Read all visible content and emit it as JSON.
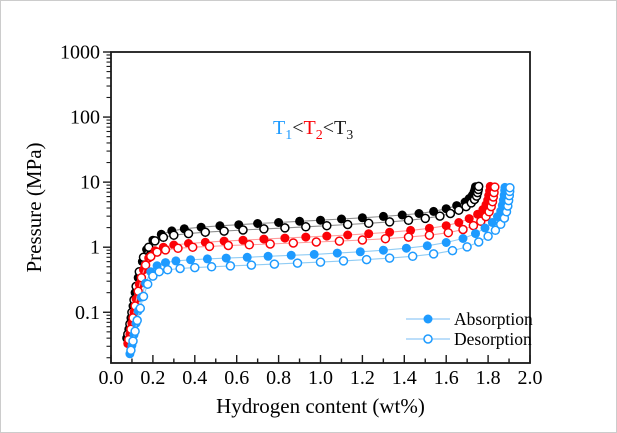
{
  "figure": {
    "background": "#ffffff",
    "frame_color": "#1a1a1a",
    "outer_border_color": "#cccccc"
  },
  "chart_data": {
    "type": "line",
    "title": "",
    "xlabel": "Hydrogen content (wt%)",
    "ylabel": "Pressure (MPa)",
    "x_axis": {
      "min": 0.0,
      "max": 2.0,
      "major_tick_step": 0.2,
      "minor_tick_step": 0.1,
      "tick_labels": [
        "0.0",
        "0.2",
        "0.4",
        "0.6",
        "0.8",
        "1.0",
        "1.2",
        "1.4",
        "1.6",
        "1.8",
        "2.0"
      ],
      "ticks_direction": "in"
    },
    "y_axis": {
      "scale": "log",
      "display_min": 0.0166,
      "display_max": 1000,
      "major_ticks": [
        0.1,
        1,
        10,
        100,
        1000
      ],
      "tick_labels": [
        "0.1",
        "1",
        "10",
        "100",
        "1000"
      ],
      "ticks_direction": "out"
    },
    "grid": false,
    "annotation": {
      "meaning": "T1 < T2 < T3",
      "parts": [
        {
          "text": "T",
          "subscript": "1",
          "color": "#1e9bff"
        },
        {
          "text": "<",
          "color": "#1a1a1a"
        },
        {
          "text": "T",
          "subscript": "2",
          "color": "#fb0207"
        },
        {
          "text": "<",
          "color": "#1a1a1a"
        },
        {
          "text": "T",
          "subscript": "3",
          "color": "#1a1a1a"
        }
      ]
    },
    "legend": {
      "position": "lower right",
      "entries": [
        {
          "label": "Absorption",
          "marker": "filled-circle",
          "marker_color": "#1e9bff",
          "line_color": "#a6d4f8"
        },
        {
          "label": "Desorption",
          "marker": "open-circle",
          "marker_color": "#1e9bff",
          "line_color": "#a6d4f8"
        }
      ]
    },
    "series": [
      {
        "name": "T3 absorption",
        "temperature": "T3",
        "branch": "absorption",
        "marker": "filled-circle",
        "marker_color": "#000000",
        "line_color": "#8f8f8f",
        "points": [
          [
            0.075,
            0.04
          ],
          [
            0.085,
            0.055
          ],
          [
            0.095,
            0.082
          ],
          [
            0.105,
            0.125
          ],
          [
            0.115,
            0.2
          ],
          [
            0.13,
            0.34
          ],
          [
            0.15,
            0.6
          ],
          [
            0.17,
            0.92
          ],
          [
            0.2,
            1.28
          ],
          [
            0.24,
            1.58
          ],
          [
            0.29,
            1.78
          ],
          [
            0.35,
            1.92
          ],
          [
            0.43,
            2.03
          ],
          [
            0.52,
            2.13
          ],
          [
            0.61,
            2.22
          ],
          [
            0.7,
            2.31
          ],
          [
            0.8,
            2.4
          ],
          [
            0.9,
            2.5
          ],
          [
            1.0,
            2.6
          ],
          [
            1.1,
            2.71
          ],
          [
            1.2,
            2.83
          ],
          [
            1.3,
            2.97
          ],
          [
            1.39,
            3.12
          ],
          [
            1.47,
            3.3
          ],
          [
            1.54,
            3.55
          ],
          [
            1.6,
            3.9
          ],
          [
            1.65,
            4.35
          ],
          [
            1.69,
            4.95
          ],
          [
            1.71,
            5.6
          ],
          [
            1.725,
            6.3
          ],
          [
            1.733,
            7.1
          ],
          [
            1.738,
            7.9
          ],
          [
            1.74,
            8.5
          ]
        ]
      },
      {
        "name": "T3 desorption",
        "temperature": "T3",
        "branch": "desorption",
        "marker": "open-circle",
        "marker_color": "#000000",
        "line_color": "#8f8f8f",
        "points": [
          [
            0.08,
            0.046
          ],
          [
            0.09,
            0.066
          ],
          [
            0.1,
            0.1
          ],
          [
            0.11,
            0.155
          ],
          [
            0.12,
            0.25
          ],
          [
            0.135,
            0.42
          ],
          [
            0.155,
            0.7
          ],
          [
            0.18,
            1.0
          ],
          [
            0.21,
            1.25
          ],
          [
            0.25,
            1.42
          ],
          [
            0.3,
            1.53
          ],
          [
            0.37,
            1.62
          ],
          [
            0.45,
            1.7
          ],
          [
            0.54,
            1.77
          ],
          [
            0.63,
            1.84
          ],
          [
            0.73,
            1.91
          ],
          [
            0.83,
            1.98
          ],
          [
            0.93,
            2.06
          ],
          [
            1.03,
            2.14
          ],
          [
            1.13,
            2.23
          ],
          [
            1.23,
            2.33
          ],
          [
            1.33,
            2.45
          ],
          [
            1.42,
            2.59
          ],
          [
            1.5,
            2.77
          ],
          [
            1.57,
            3.0
          ],
          [
            1.62,
            3.3
          ],
          [
            1.66,
            3.7
          ],
          [
            1.695,
            4.2
          ],
          [
            1.72,
            4.8
          ],
          [
            1.735,
            5.4
          ],
          [
            1.745,
            6.1
          ],
          [
            1.75,
            6.9
          ],
          [
            1.753,
            7.7
          ],
          [
            1.755,
            8.6
          ]
        ]
      },
      {
        "name": "T2 absorption",
        "temperature": "T2",
        "branch": "absorption",
        "marker": "filled-circle",
        "marker_color": "#fb0207",
        "line_color": "#ff9c9c",
        "points": [
          [
            0.08,
            0.033
          ],
          [
            0.09,
            0.046
          ],
          [
            0.1,
            0.068
          ],
          [
            0.11,
            0.1
          ],
          [
            0.12,
            0.16
          ],
          [
            0.135,
            0.27
          ],
          [
            0.155,
            0.45
          ],
          [
            0.18,
            0.68
          ],
          [
            0.21,
            0.88
          ],
          [
            0.25,
            1.0
          ],
          [
            0.3,
            1.08
          ],
          [
            0.37,
            1.14
          ],
          [
            0.45,
            1.19
          ],
          [
            0.54,
            1.24
          ],
          [
            0.63,
            1.28
          ],
          [
            0.73,
            1.33
          ],
          [
            0.83,
            1.38
          ],
          [
            0.93,
            1.43
          ],
          [
            1.03,
            1.48
          ],
          [
            1.13,
            1.54
          ],
          [
            1.23,
            1.61
          ],
          [
            1.33,
            1.7
          ],
          [
            1.43,
            1.81
          ],
          [
            1.52,
            1.95
          ],
          [
            1.6,
            2.14
          ],
          [
            1.66,
            2.4
          ],
          [
            1.71,
            2.75
          ],
          [
            1.75,
            3.2
          ],
          [
            1.775,
            3.8
          ],
          [
            1.79,
            4.5
          ],
          [
            1.798,
            5.3
          ],
          [
            1.803,
            6.2
          ],
          [
            1.807,
            7.3
          ],
          [
            1.81,
            8.6
          ]
        ]
      },
      {
        "name": "T2 desorption",
        "temperature": "T2",
        "branch": "desorption",
        "marker": "open-circle",
        "marker_color": "#fb0207",
        "line_color": "#ff9c9c",
        "points": [
          [
            0.085,
            0.038
          ],
          [
            0.095,
            0.055
          ],
          [
            0.105,
            0.082
          ],
          [
            0.115,
            0.125
          ],
          [
            0.13,
            0.21
          ],
          [
            0.145,
            0.34
          ],
          [
            0.165,
            0.53
          ],
          [
            0.19,
            0.72
          ],
          [
            0.22,
            0.84
          ],
          [
            0.26,
            0.91
          ],
          [
            0.32,
            0.96
          ],
          [
            0.39,
            1.0
          ],
          [
            0.47,
            1.03
          ],
          [
            0.56,
            1.06
          ],
          [
            0.66,
            1.09
          ],
          [
            0.76,
            1.12
          ],
          [
            0.87,
            1.16
          ],
          [
            0.98,
            1.2
          ],
          [
            1.09,
            1.24
          ],
          [
            1.2,
            1.29
          ],
          [
            1.31,
            1.35
          ],
          [
            1.42,
            1.43
          ],
          [
            1.52,
            1.53
          ],
          [
            1.61,
            1.67
          ],
          [
            1.68,
            1.87
          ],
          [
            1.73,
            2.15
          ],
          [
            1.765,
            2.5
          ],
          [
            1.79,
            2.95
          ],
          [
            1.805,
            3.5
          ],
          [
            1.815,
            4.2
          ],
          [
            1.821,
            5.0
          ],
          [
            1.825,
            5.9
          ],
          [
            1.828,
            6.9
          ],
          [
            1.832,
            8.4
          ]
        ]
      },
      {
        "name": "T1 absorption",
        "temperature": "T1",
        "branch": "absorption",
        "marker": "filled-circle",
        "marker_color": "#1e9bff",
        "line_color": "#90ccf4",
        "points": [
          [
            0.09,
            0.023
          ],
          [
            0.1,
            0.031
          ],
          [
            0.11,
            0.045
          ],
          [
            0.12,
            0.068
          ],
          [
            0.13,
            0.105
          ],
          [
            0.145,
            0.17
          ],
          [
            0.165,
            0.28
          ],
          [
            0.19,
            0.42
          ],
          [
            0.22,
            0.52
          ],
          [
            0.26,
            0.58
          ],
          [
            0.31,
            0.615
          ],
          [
            0.38,
            0.64
          ],
          [
            0.46,
            0.66
          ],
          [
            0.55,
            0.68
          ],
          [
            0.65,
            0.7
          ],
          [
            0.75,
            0.725
          ],
          [
            0.86,
            0.75
          ],
          [
            0.97,
            0.775
          ],
          [
            1.08,
            0.81
          ],
          [
            1.19,
            0.85
          ],
          [
            1.3,
            0.9
          ],
          [
            1.41,
            0.965
          ],
          [
            1.51,
            1.05
          ],
          [
            1.6,
            1.18
          ],
          [
            1.68,
            1.36
          ],
          [
            1.74,
            1.62
          ],
          [
            1.785,
            1.97
          ],
          [
            1.82,
            2.4
          ],
          [
            1.845,
            2.95
          ],
          [
            1.86,
            3.6
          ],
          [
            1.868,
            4.4
          ],
          [
            1.873,
            5.3
          ],
          [
            1.877,
            6.3
          ],
          [
            1.879,
            7.4
          ],
          [
            1.88,
            8.3
          ]
        ]
      },
      {
        "name": "T1 desorption",
        "temperature": "T1",
        "branch": "desorption",
        "marker": "open-circle",
        "marker_color": "#1e9bff",
        "line_color": "#90ccf4",
        "points": [
          [
            0.095,
            0.026
          ],
          [
            0.105,
            0.036
          ],
          [
            0.115,
            0.051
          ],
          [
            0.125,
            0.075
          ],
          [
            0.14,
            0.115
          ],
          [
            0.155,
            0.175
          ],
          [
            0.175,
            0.27
          ],
          [
            0.2,
            0.36
          ],
          [
            0.23,
            0.42
          ],
          [
            0.27,
            0.45
          ],
          [
            0.33,
            0.47
          ],
          [
            0.4,
            0.485
          ],
          [
            0.48,
            0.5
          ],
          [
            0.57,
            0.515
          ],
          [
            0.67,
            0.53
          ],
          [
            0.78,
            0.55
          ],
          [
            0.89,
            0.57
          ],
          [
            1.0,
            0.59
          ],
          [
            1.11,
            0.615
          ],
          [
            1.22,
            0.645
          ],
          [
            1.33,
            0.68
          ],
          [
            1.44,
            0.725
          ],
          [
            1.54,
            0.79
          ],
          [
            1.63,
            0.885
          ],
          [
            1.7,
            1.01
          ],
          [
            1.755,
            1.2
          ],
          [
            1.8,
            1.47
          ],
          [
            1.835,
            1.82
          ],
          [
            1.86,
            2.25
          ],
          [
            1.878,
            2.8
          ],
          [
            1.888,
            3.5
          ],
          [
            1.894,
            4.3
          ],
          [
            1.898,
            5.2
          ],
          [
            1.901,
            6.2
          ],
          [
            1.903,
            7.2
          ],
          [
            1.904,
            8.2
          ]
        ]
      }
    ]
  }
}
